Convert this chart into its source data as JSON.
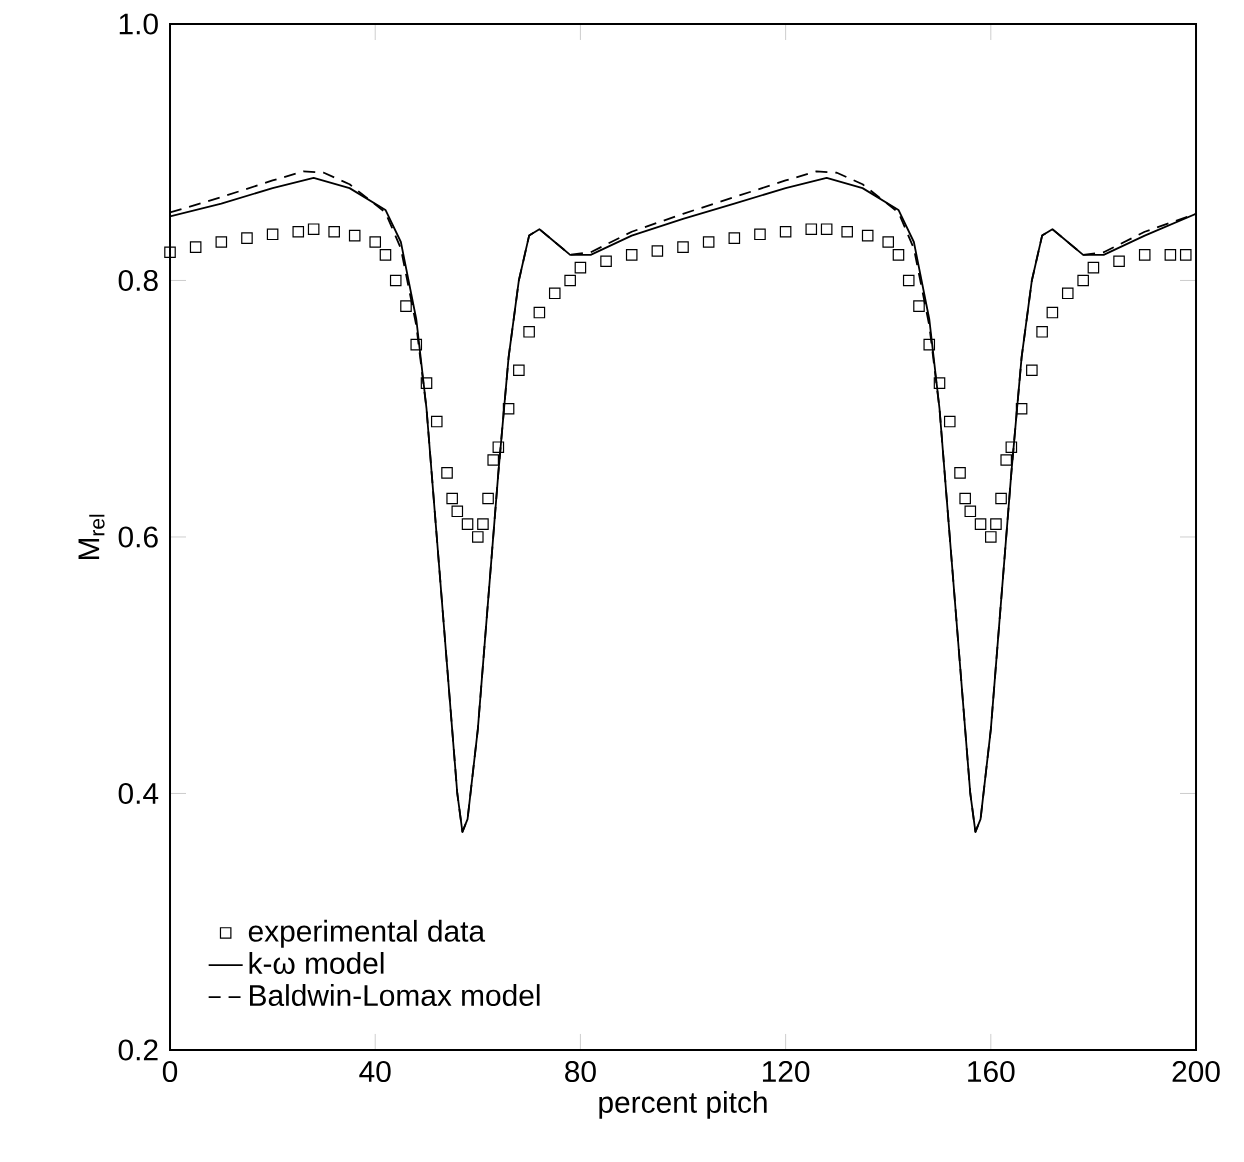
{
  "chart_data": {
    "type": "line",
    "xlabel": "percent pitch",
    "ylabel": "M$_{rel}$",
    "xlim": [
      0,
      200
    ],
    "ylim": [
      0.2,
      1.0
    ],
    "xticks": [
      0,
      40,
      80,
      120,
      160,
      200
    ],
    "yticks": [
      {
        "value": 0.2,
        "label": "0.2"
      },
      {
        "value": 0.4,
        "label": "0.4"
      },
      {
        "value": 0.6,
        "label": "0.6"
      },
      {
        "value": 0.8,
        "label": "0.8"
      },
      {
        "value": 1.0,
        "label": "1.0"
      }
    ],
    "grid": false,
    "legend": "bottom left",
    "series": [
      {
        "name": "experimental data",
        "type": "scatter",
        "marker": "square",
        "color": "#000000",
        "x": [
          0,
          5,
          10,
          15,
          20,
          25,
          28,
          32,
          36,
          40,
          42,
          44,
          46,
          48,
          50,
          52,
          54,
          55,
          56,
          58,
          60,
          61,
          62,
          63,
          64,
          66,
          68,
          70,
          72,
          75,
          78,
          80,
          85,
          90,
          95,
          100,
          105,
          110,
          115,
          120,
          125,
          128,
          132,
          136,
          140,
          142,
          144,
          146,
          148,
          150,
          152,
          154,
          155,
          156,
          158,
          160,
          161,
          162,
          163,
          164,
          166,
          168,
          170,
          172,
          175,
          178,
          180,
          185,
          190,
          195,
          198
        ],
        "values": [
          0.822,
          0.826,
          0.83,
          0.833,
          0.836,
          0.838,
          0.84,
          0.838,
          0.835,
          0.83,
          0.82,
          0.8,
          0.78,
          0.75,
          0.72,
          0.69,
          0.65,
          0.63,
          0.62,
          0.61,
          0.6,
          0.61,
          0.63,
          0.66,
          0.67,
          0.7,
          0.73,
          0.76,
          0.775,
          0.79,
          0.8,
          0.81,
          0.815,
          0.82,
          0.823,
          0.826,
          0.83,
          0.833,
          0.836,
          0.838,
          0.84,
          0.84,
          0.838,
          0.835,
          0.83,
          0.82,
          0.8,
          0.78,
          0.75,
          0.72,
          0.69,
          0.65,
          0.63,
          0.62,
          0.61,
          0.6,
          0.61,
          0.63,
          0.66,
          0.67,
          0.7,
          0.73,
          0.76,
          0.775,
          0.79,
          0.8,
          0.81,
          0.815,
          0.82,
          0.82,
          0.82
        ]
      },
      {
        "name": "k-ω model",
        "color": "#000000",
        "line_style": "solid",
        "x": [
          0,
          10,
          20,
          28,
          35,
          42,
          45,
          48,
          50,
          52,
          54,
          56,
          57,
          58,
          60,
          62,
          64,
          66,
          68,
          70,
          72,
          75,
          78,
          82,
          90,
          100,
          110,
          120,
          128,
          135,
          142,
          145,
          148,
          150,
          152,
          154,
          156,
          157,
          158,
          160,
          162,
          164,
          166,
          168,
          170,
          172,
          175,
          178,
          182,
          190,
          200
        ],
        "values": [
          0.85,
          0.86,
          0.872,
          0.88,
          0.872,
          0.855,
          0.83,
          0.77,
          0.7,
          0.6,
          0.5,
          0.4,
          0.37,
          0.38,
          0.45,
          0.55,
          0.65,
          0.74,
          0.8,
          0.835,
          0.84,
          0.83,
          0.82,
          0.82,
          0.835,
          0.848,
          0.86,
          0.872,
          0.88,
          0.872,
          0.855,
          0.83,
          0.77,
          0.7,
          0.6,
          0.5,
          0.4,
          0.37,
          0.38,
          0.45,
          0.55,
          0.65,
          0.74,
          0.8,
          0.835,
          0.84,
          0.83,
          0.82,
          0.82,
          0.835,
          0.852
        ]
      },
      {
        "name": "Baldwin-Lomax model",
        "color": "#000000",
        "line_style": "dashed",
        "x": [
          0,
          10,
          20,
          26,
          30,
          35,
          42,
          45,
          48,
          50,
          52,
          54,
          56,
          57,
          58,
          60,
          62,
          64,
          66,
          68,
          70,
          72,
          75,
          78,
          82,
          90,
          100,
          110,
          120,
          126,
          130,
          135,
          142,
          145,
          148,
          150,
          152,
          154,
          156,
          157,
          158,
          160,
          162,
          164,
          166,
          168,
          170,
          172,
          175,
          178,
          182,
          190,
          200
        ],
        "values": [
          0.853,
          0.865,
          0.878,
          0.885,
          0.884,
          0.875,
          0.853,
          0.825,
          0.765,
          0.7,
          0.6,
          0.5,
          0.4,
          0.37,
          0.38,
          0.45,
          0.55,
          0.65,
          0.74,
          0.8,
          0.835,
          0.84,
          0.83,
          0.82,
          0.822,
          0.838,
          0.852,
          0.865,
          0.878,
          0.885,
          0.884,
          0.875,
          0.853,
          0.825,
          0.765,
          0.7,
          0.6,
          0.5,
          0.4,
          0.37,
          0.38,
          0.45,
          0.55,
          0.65,
          0.74,
          0.8,
          0.835,
          0.84,
          0.83,
          0.82,
          0.822,
          0.838,
          0.852
        ]
      }
    ]
  }
}
